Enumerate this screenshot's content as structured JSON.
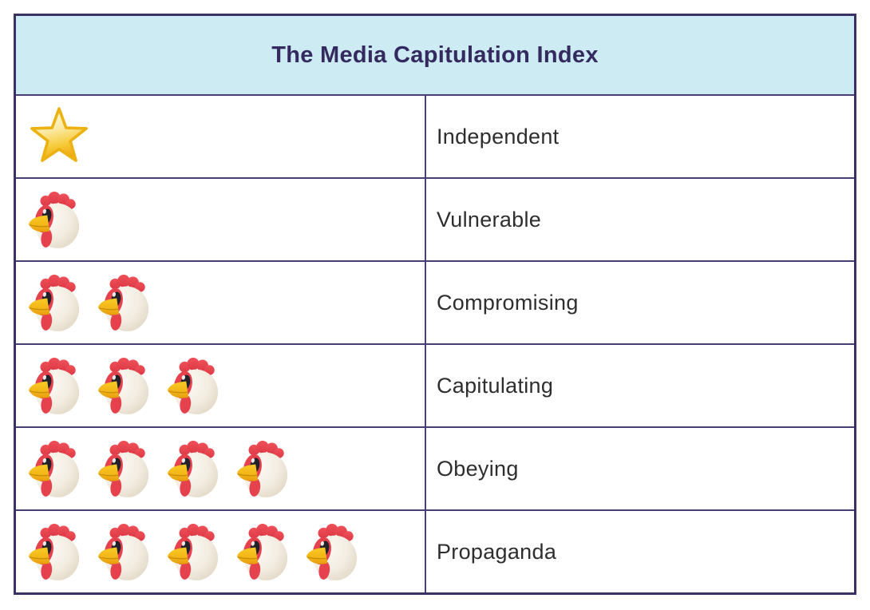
{
  "title": "The Media Capitulation Index",
  "rows": [
    {
      "label": "Independent",
      "icon": "star",
      "count": 1
    },
    {
      "label": "Vulnerable",
      "icon": "chicken",
      "count": 1
    },
    {
      "label": "Compromising",
      "icon": "chicken",
      "count": 2
    },
    {
      "label": "Capitulating",
      "icon": "chicken",
      "count": 3
    },
    {
      "label": "Obeying",
      "icon": "chicken",
      "count": 4
    },
    {
      "label": "Propaganda",
      "icon": "chicken",
      "count": 5
    }
  ],
  "icons": {
    "star": "star-icon",
    "chicken": "chicken-icon"
  },
  "colors": {
    "outer_border": "#3b3264",
    "grid_line": "#473e72",
    "header_bg": "#cdebf2",
    "title_text": "#342a5f",
    "label_text": "#2e2e2e",
    "row_bg": "#ffffff",
    "chicken_red": "#e6424e",
    "chicken_body": "#f3ede2",
    "beak_yellow": "#f2b517",
    "star_gold": "#f6c935"
  },
  "chart_data": {
    "type": "table",
    "title": "The Media Capitulation Index",
    "categories": [
      "Independent",
      "Vulnerable",
      "Compromising",
      "Capitulating",
      "Obeying",
      "Propaganda"
    ],
    "series": [
      {
        "name": "star_count",
        "values": [
          1,
          0,
          0,
          0,
          0,
          0
        ]
      },
      {
        "name": "chicken_count",
        "values": [
          0,
          1,
          2,
          3,
          4,
          5
        ]
      }
    ]
  }
}
